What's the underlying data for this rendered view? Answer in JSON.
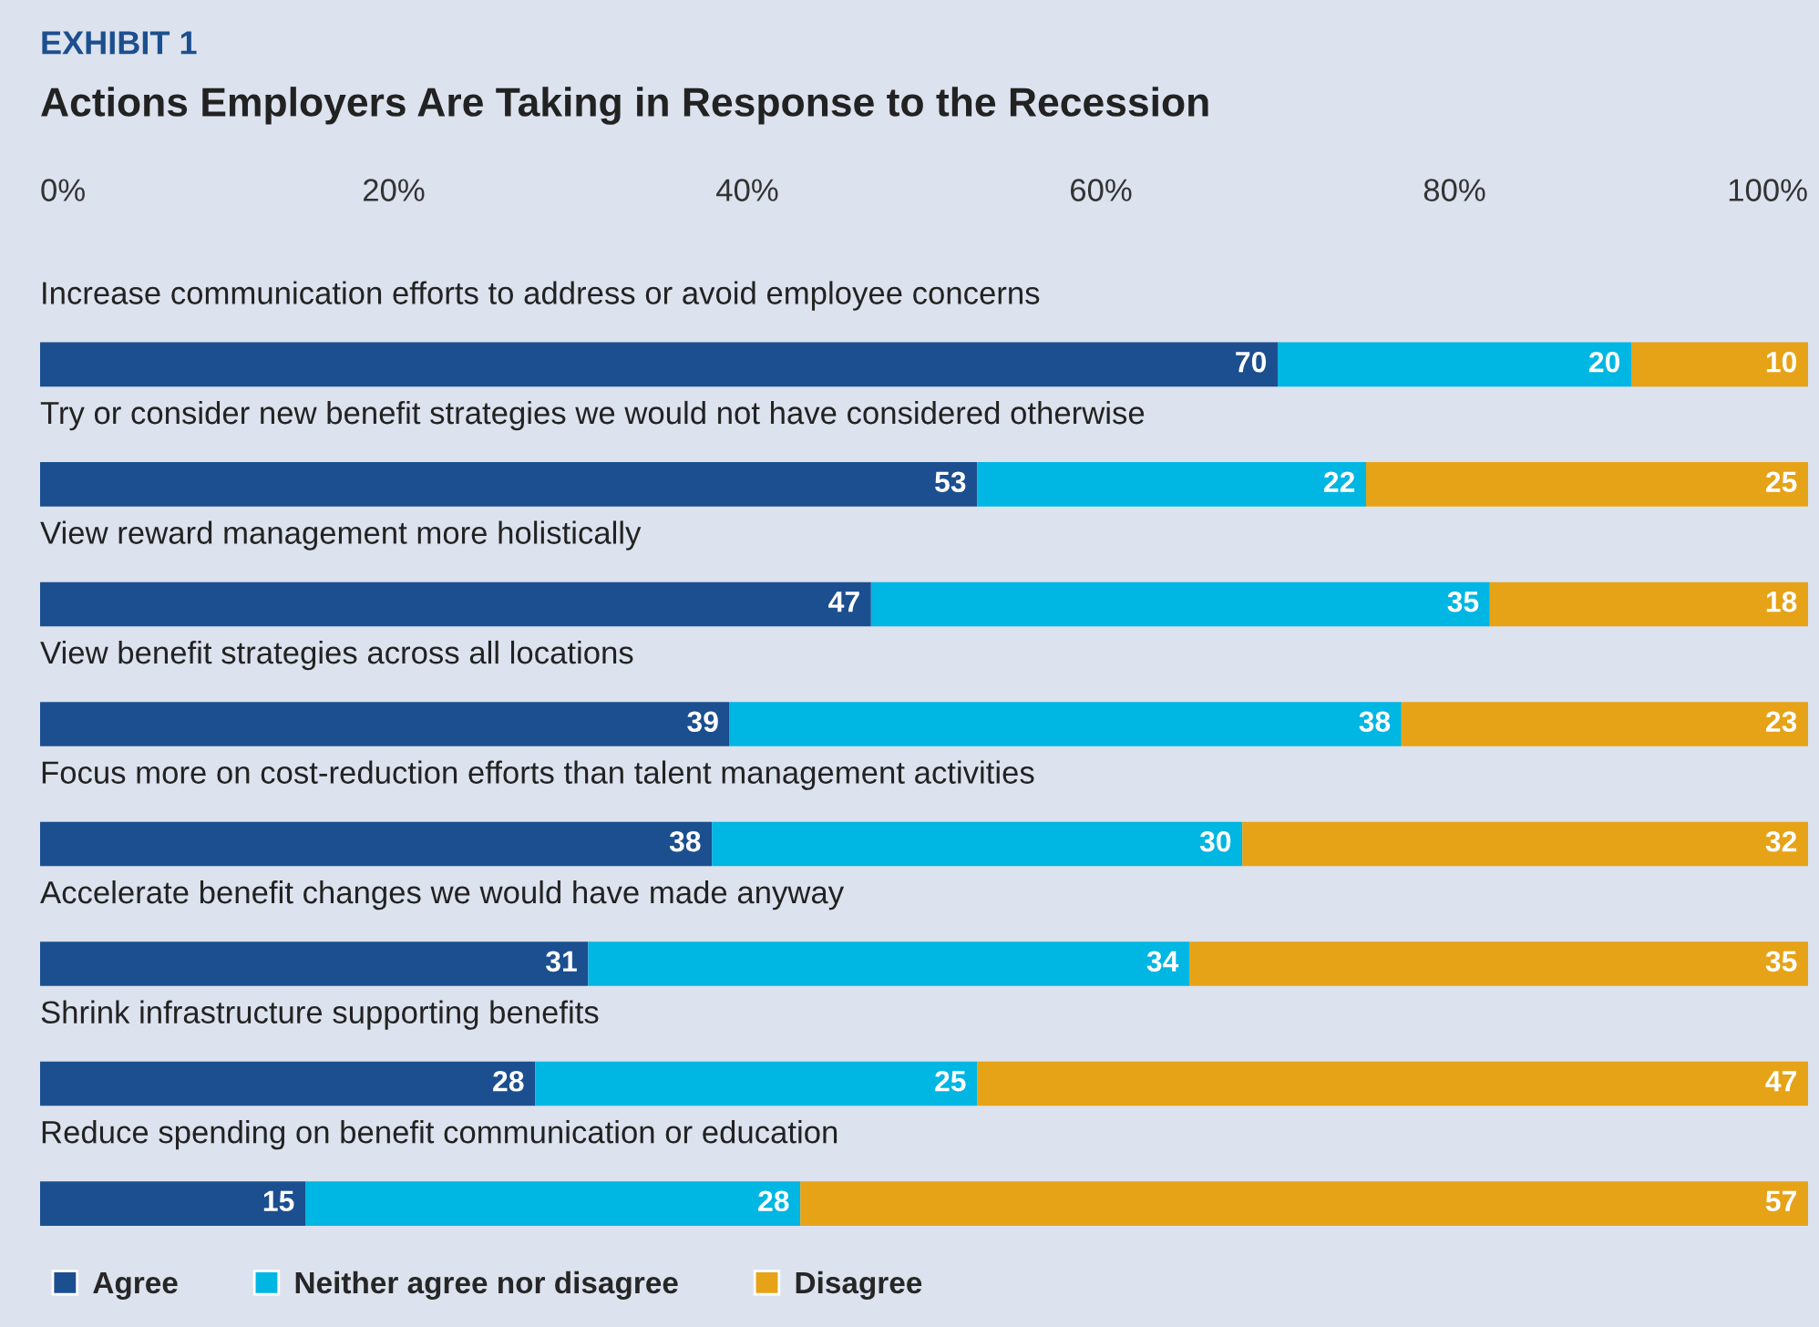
{
  "chart_data": {
    "type": "bar",
    "orientation": "horizontal",
    "stacked": true,
    "subtitle": "EXHIBIT 1",
    "title": "Actions Employers Are Taking in Response to the Recession",
    "categories": [
      "Increase communication efforts to address or avoid employee concerns",
      "Try or consider new benefit strategies we would not have considered otherwise",
      "View reward management more holistically",
      "View benefit strategies across all locations",
      "Focus more on cost-reduction efforts than talent management activities",
      "Accelerate benefit changes we would have made anyway",
      "Shrink infrastructure supporting benefits",
      "Reduce spending on benefit communication or education"
    ],
    "series": [
      {
        "name": "Agree",
        "color": "#1c4f8f",
        "values": [
          70,
          53,
          47,
          39,
          38,
          31,
          28,
          15
        ]
      },
      {
        "name": "Neither agree nor disagree",
        "color": "#00b6e3",
        "values": [
          20,
          22,
          35,
          38,
          30,
          34,
          25,
          28
        ]
      },
      {
        "name": "Disagree",
        "color": "#e6a317",
        "values": [
          10,
          25,
          18,
          23,
          32,
          35,
          47,
          57
        ]
      }
    ],
    "xlim": [
      0,
      100
    ],
    "xticks": [
      {
        "value": 0,
        "label": "0%"
      },
      {
        "value": 20,
        "label": "20%"
      },
      {
        "value": 40,
        "label": "40%"
      },
      {
        "value": 60,
        "label": "60%"
      },
      {
        "value": 80,
        "label": "80%"
      },
      {
        "value": 100,
        "label": "100%"
      }
    ],
    "data_labels": true,
    "grid": false,
    "legend": "bottom left"
  }
}
